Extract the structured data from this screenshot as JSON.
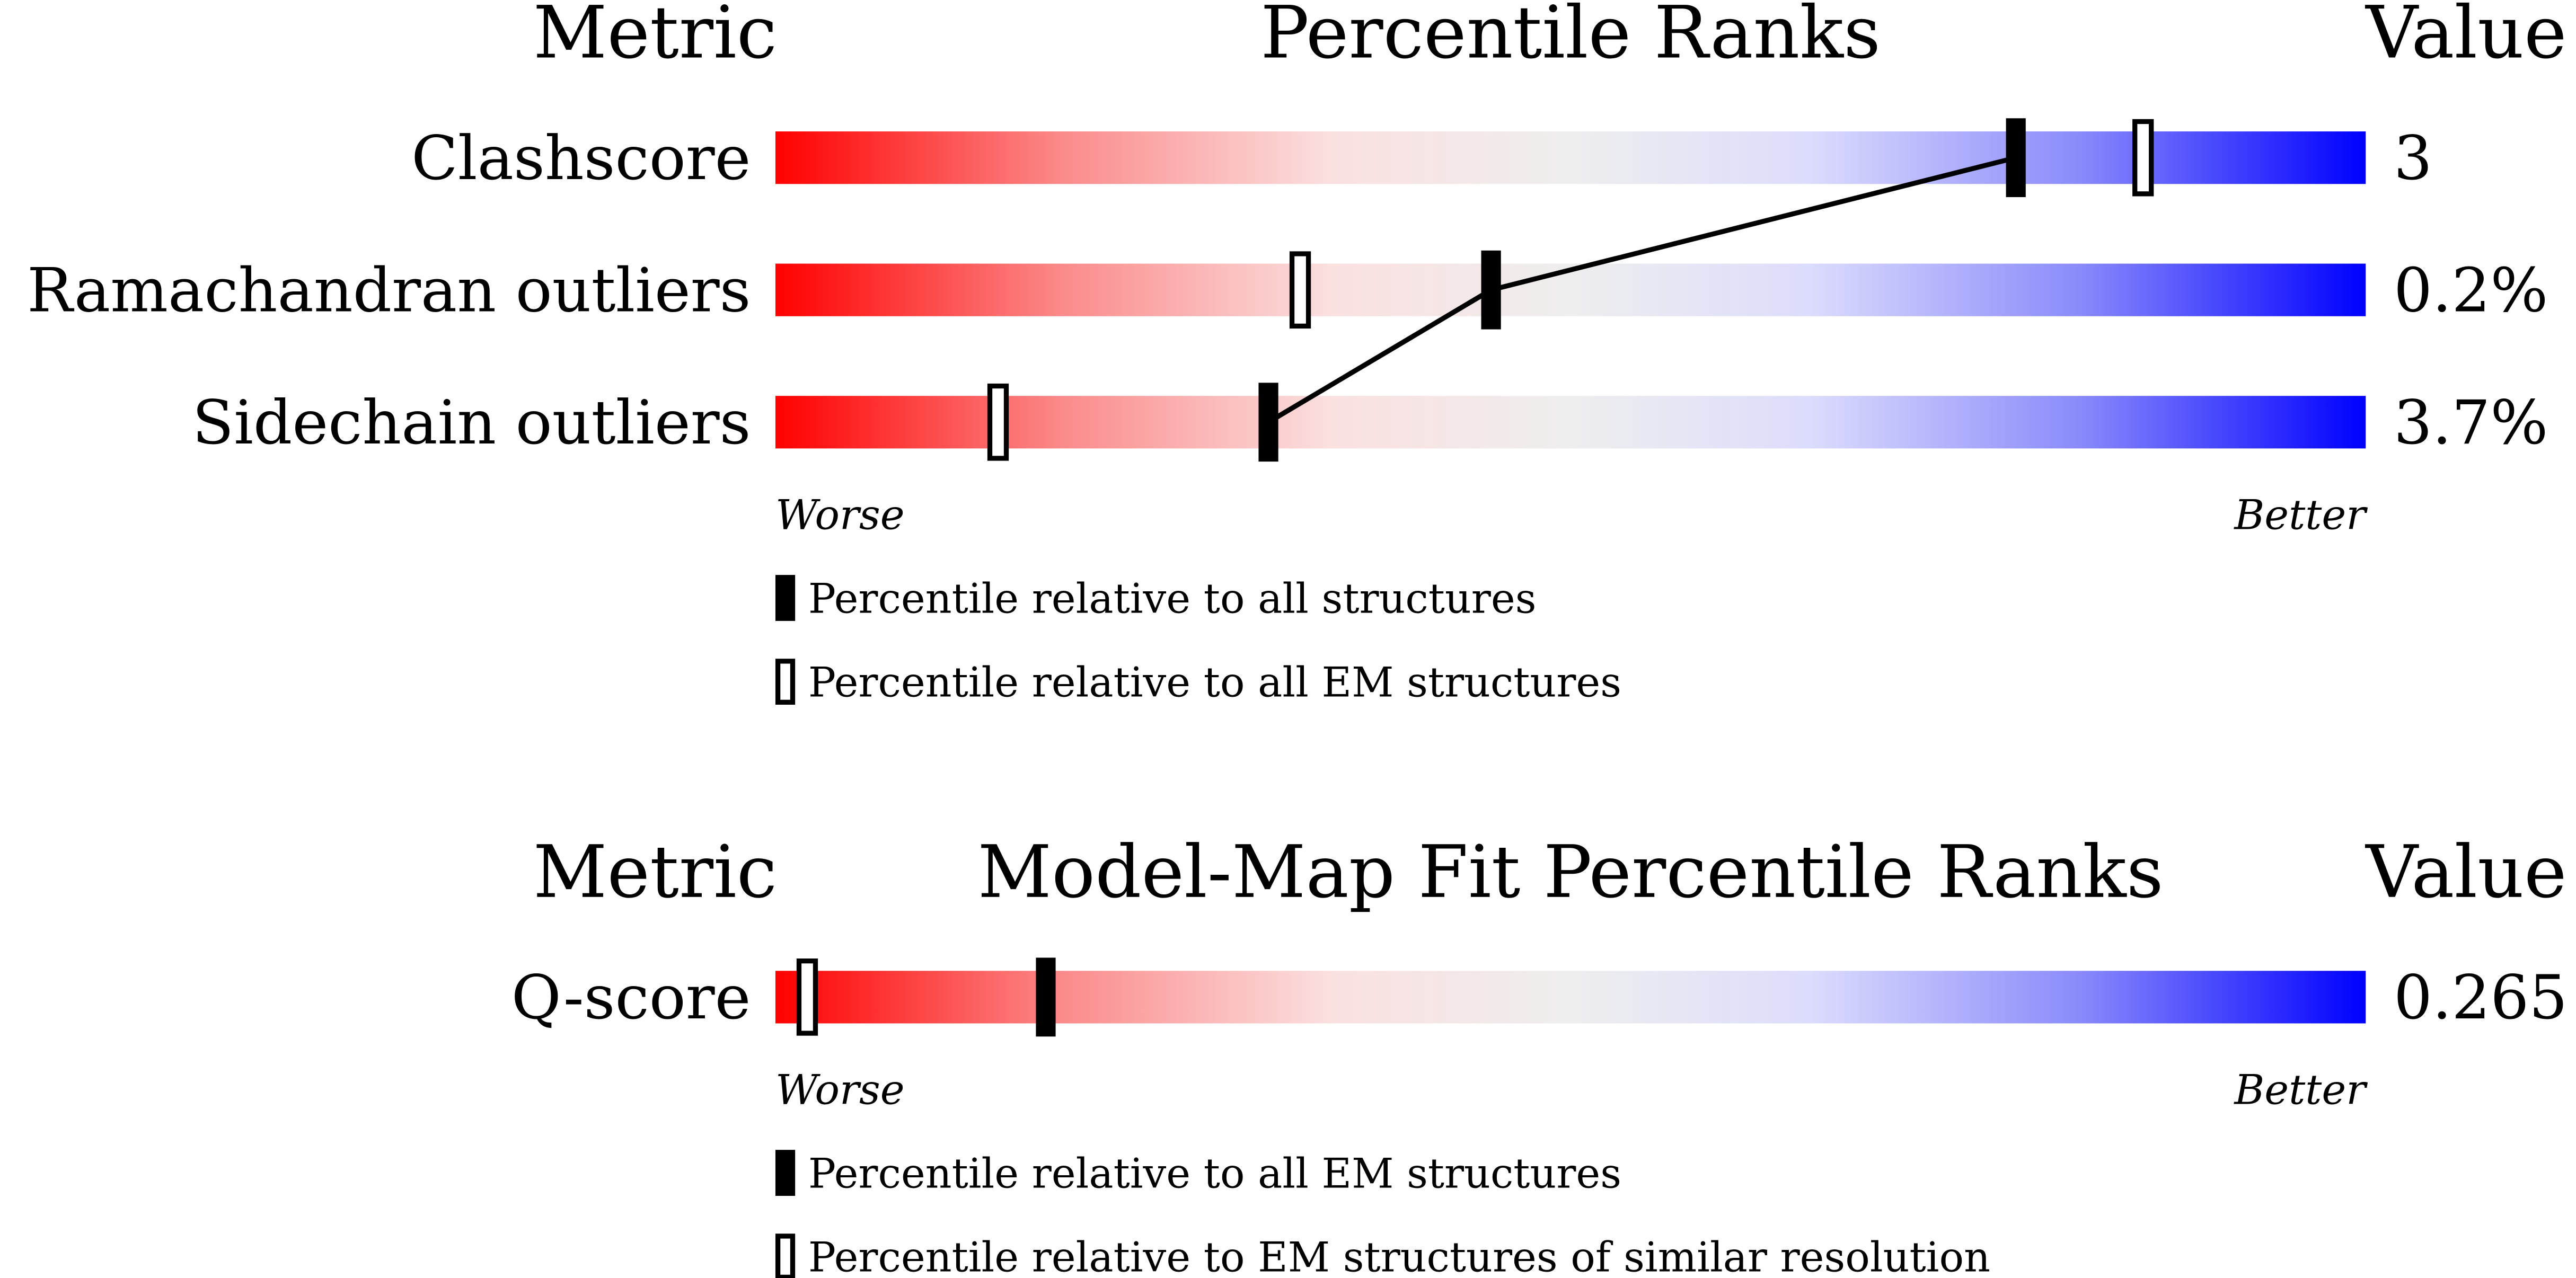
{
  "chart_data": [
    {
      "type": "percentile-slider",
      "headers": [
        "Metric",
        "Percentile Ranks",
        "Value"
      ],
      "categories": [
        "Clashscore",
        "Ramachandran outliers",
        "Sidechain outliers"
      ],
      "metric_values": [
        3,
        0.2,
        3.7
      ],
      "metric_value_labels": [
        "3",
        "0.2%",
        "3.7%"
      ],
      "xlim": [
        0,
        100
      ],
      "worse_label": "Worse",
      "better_label": "Better",
      "connect_filled": true,
      "series": [
        {
          "name": "Percentile relative to all structures",
          "marker": "filled",
          "color": "#000000",
          "values": [
            78,
            45,
            31
          ]
        },
        {
          "name": "Percentile relative to all EM structures",
          "marker": "open",
          "color": "#000000",
          "values": [
            86,
            33,
            14
          ]
        }
      ]
    },
    {
      "type": "percentile-slider",
      "headers": [
        "Metric",
        "Model-Map Fit Percentile Ranks",
        "Value"
      ],
      "categories": [
        "Q-score"
      ],
      "metric_values": [
        0.265
      ],
      "xlim": [
        0,
        100
      ],
      "worse_label": "Worse",
      "better_label": "Better",
      "connect_filled": true,
      "series": [
        {
          "name": "Percentile relative to all EM structures",
          "marker": "filled",
          "color": "#000000",
          "values": [
            17
          ]
        },
        {
          "name": "Percentile relative to EM structures of similar resolution",
          "marker": "open",
          "color": "#000000",
          "values": [
            2
          ]
        }
      ]
    }
  ]
}
